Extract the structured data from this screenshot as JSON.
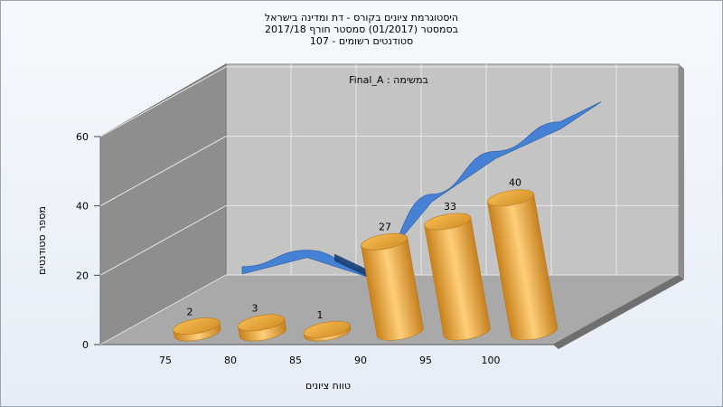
{
  "title": {
    "line1": "היסטוגרמת ציונים בקורס - דת ומדינה בישראל",
    "line2": "בסמסטר  (01/2017)  סמסטר חורף 2017/18",
    "line3": "סטודנטים רשומים - 107"
  },
  "colors": {
    "bar": "#e6a53d",
    "curve": "#3f7fd8",
    "back_wall": "#c4c4c4",
    "side_wall": "#8e8e8e",
    "floor": "#a9a9a9"
  },
  "chart_data": {
    "type": "bar",
    "title": "היסטוגרמת ציונים בקורס - דת ומדינה בישראל",
    "annotation": "במשימה : Final_A",
    "xlabel": "טווח ציונים",
    "ylabel": "מספר סטודנטים",
    "x_ticks": [
      "75",
      "80",
      "85",
      "90",
      "95",
      "100"
    ],
    "y_ticks": [
      "0",
      "20",
      "40",
      "60"
    ],
    "ylim": [
      0,
      60
    ],
    "categories": [
      "75",
      "80",
      "85",
      "90",
      "95",
      "100"
    ],
    "values": [
      2,
      3,
      1,
      27,
      33,
      40
    ],
    "data_labels": [
      "2",
      "3",
      "1",
      "27",
      "33",
      "40"
    ],
    "curve": {
      "type": "area",
      "values": [
        8,
        13,
        7,
        30,
        43,
        52
      ]
    },
    "grid": true,
    "legend": "none"
  }
}
